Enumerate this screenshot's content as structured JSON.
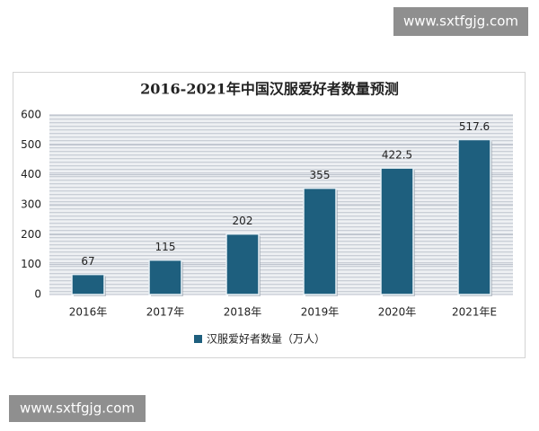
{
  "watermark_top": "www.sxtfgjg.com",
  "watermark_bottom": "www.sxtfgjg.com",
  "chart_data": {
    "type": "bar",
    "title": "2016-2021年中国汉服爱好者数量预测",
    "categories": [
      "2016年",
      "2017年",
      "2018年",
      "2019年",
      "2020年",
      "2021年E"
    ],
    "series": [
      {
        "name": "汉服爱好者数量（万人）",
        "color": "#1e5f7e",
        "values": [
          67,
          115,
          202,
          355,
          422.5,
          517.6
        ]
      }
    ],
    "ylim": [
      0,
      600
    ],
    "yticks": [
      0,
      100,
      200,
      300,
      400,
      500,
      600
    ],
    "grid": true,
    "legend": "bottom"
  }
}
